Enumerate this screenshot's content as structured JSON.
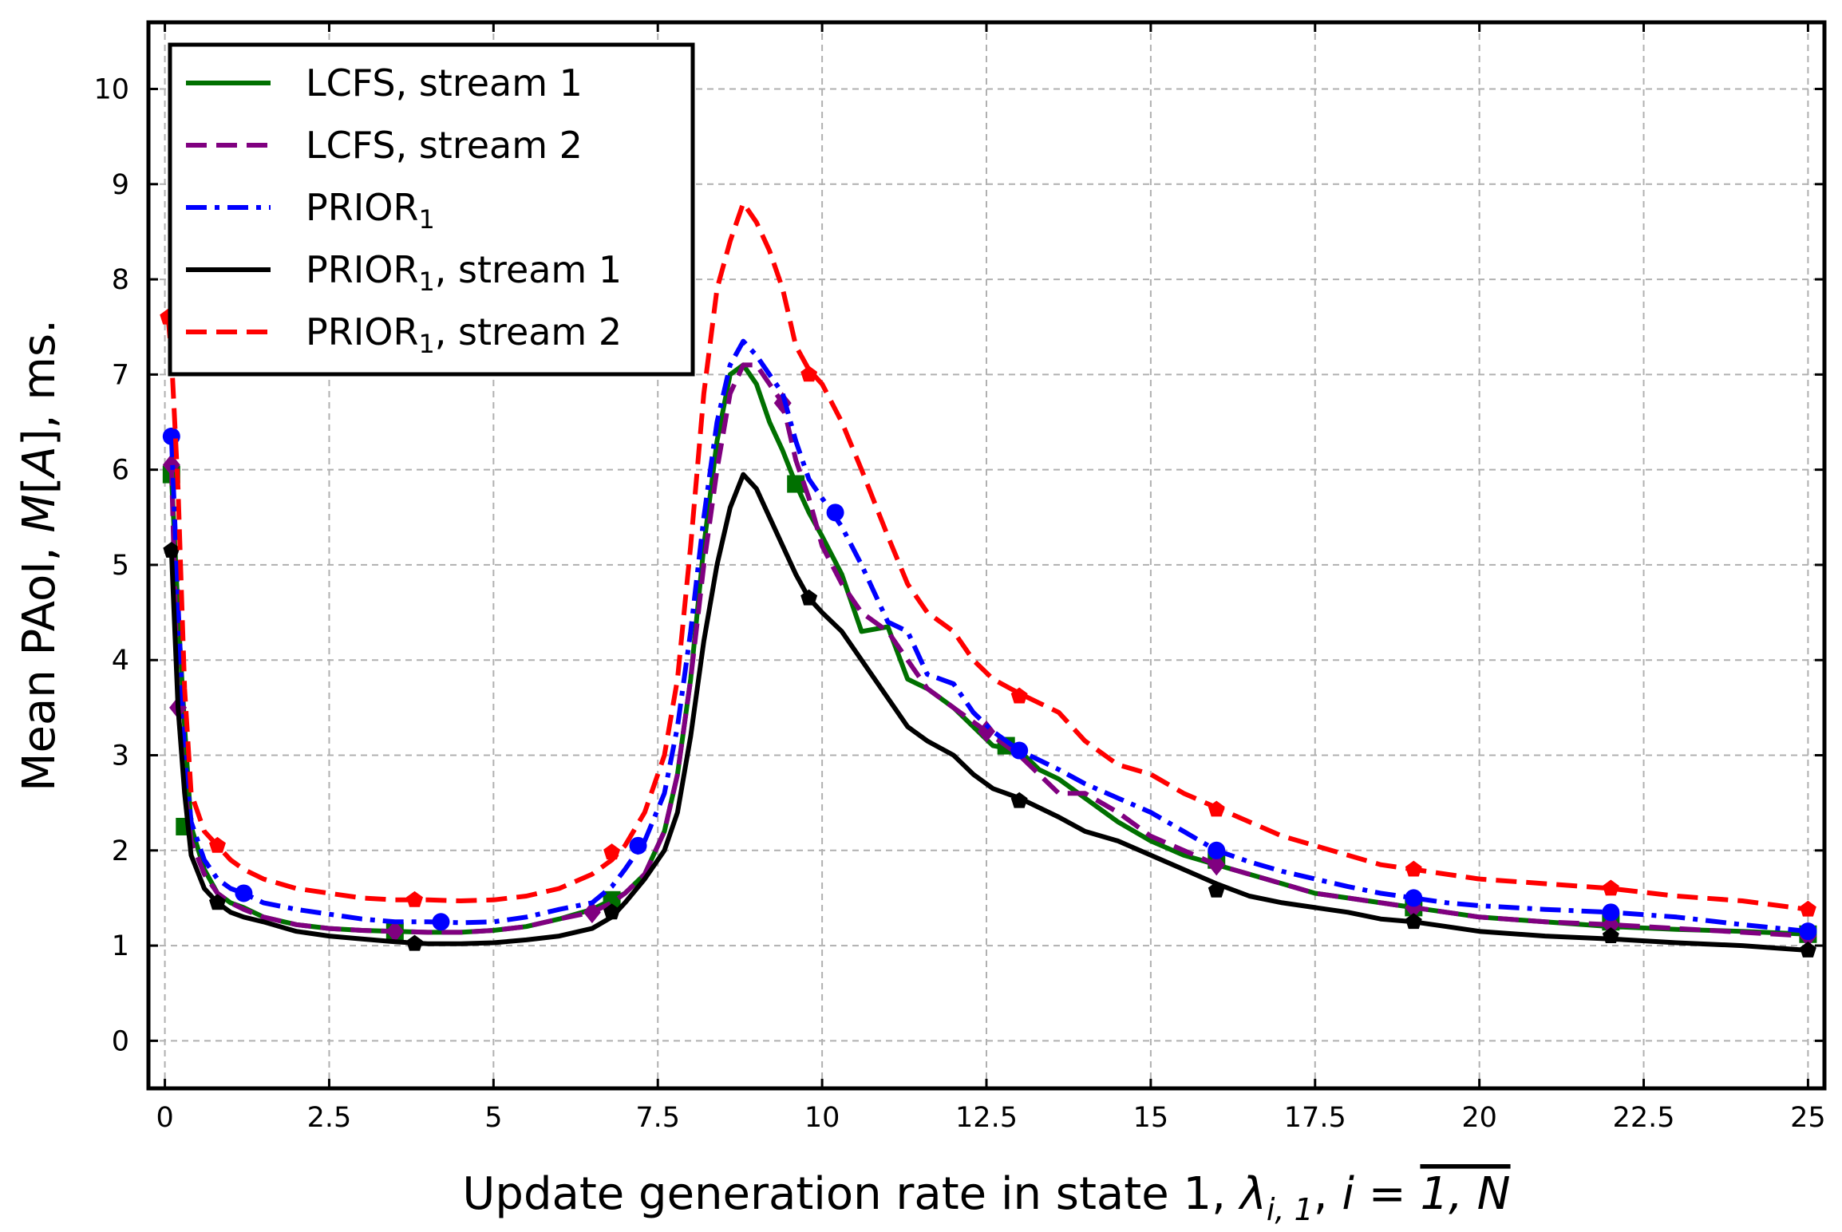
{
  "chart_data": {
    "type": "line",
    "xlabel": "Update generation rate in state 1, λ_{i,1}, i = 1, N",
    "xlabel_parts": {
      "prefix": "Update generation rate in state 1, ",
      "lambda": "λ",
      "lambda_sub": "i, 1",
      "comma": ", ",
      "i": "i",
      "eq": " = ",
      "range": "1, N"
    },
    "ylabel": "Mean PAoI, M[A], ms.",
    "ylabel_parts": {
      "prefix": "Mean PAoI, ",
      "m": "M",
      "open": "[",
      "a": "A",
      "close": "], ms."
    },
    "xlim": [
      -0.25,
      25.25
    ],
    "ylim": [
      -0.5,
      10.7
    ],
    "x_ticks": [
      0,
      2.5,
      5,
      7.5,
      10,
      12.5,
      15,
      17.5,
      20,
      22.5,
      25
    ],
    "x_tick_labels": [
      "0",
      "2.5",
      "5",
      "7.5",
      "10",
      "12.5",
      "15",
      "17.5",
      "20",
      "22.5",
      "25"
    ],
    "y_ticks": [
      0,
      1,
      2,
      3,
      4,
      5,
      6,
      7,
      8,
      9,
      10
    ],
    "y_tick_labels": [
      "0",
      "1",
      "2",
      "3",
      "4",
      "5",
      "6",
      "7",
      "8",
      "9",
      "10"
    ],
    "grid": true,
    "legend_position": "top-left",
    "series": [
      {
        "id": "lcfs1",
        "name": "LCFS, stream 1",
        "label": {
          "main": "LCFS, stream 1",
          "sub": "",
          "rest": ""
        },
        "color": "#007000",
        "dash": "solid",
        "marker": "square",
        "x": [
          0.1,
          0.2,
          0.3,
          0.4,
          0.6,
          0.8,
          1,
          1.2,
          1.5,
          2,
          2.5,
          3,
          3.5,
          4,
          4.5,
          5,
          5.5,
          6,
          6.5,
          6.8,
          7,
          7.3,
          7.6,
          7.8,
          8,
          8.2,
          8.4,
          8.6,
          8.8,
          9,
          9.2,
          9.4,
          9.6,
          9.8,
          10,
          10.3,
          10.6,
          11,
          11.3,
          11.6,
          12,
          12.3,
          12.6,
          13,
          13.3,
          13.6,
          14,
          14.5,
          15,
          15.5,
          16,
          16.5,
          17,
          17.5,
          18,
          18.5,
          19,
          19.5,
          20,
          21,
          22,
          23,
          24,
          25
        ],
        "y": [
          5.95,
          4.5,
          3.3,
          2.25,
          1.8,
          1.55,
          1.45,
          1.4,
          1.3,
          1.22,
          1.18,
          1.16,
          1.15,
          1.14,
          1.14,
          1.16,
          1.2,
          1.28,
          1.38,
          1.48,
          1.55,
          1.75,
          2.2,
          2.8,
          3.8,
          5.2,
          6.3,
          7.0,
          7.1,
          6.9,
          6.5,
          6.2,
          5.85,
          5.55,
          5.3,
          4.9,
          4.3,
          4.35,
          3.8,
          3.7,
          3.5,
          3.3,
          3.1,
          3.05,
          2.85,
          2.75,
          2.55,
          2.3,
          2.1,
          1.95,
          1.85,
          1.75,
          1.65,
          1.55,
          1.5,
          1.45,
          1.4,
          1.35,
          1.3,
          1.25,
          1.2,
          1.17,
          1.15,
          1.12
        ],
        "marker_x": [
          0.1,
          0.3,
          3.5,
          6.8,
          9.6,
          12.8,
          16,
          19,
          22,
          25
        ],
        "marker_y": [
          5.95,
          2.25,
          1.15,
          1.48,
          5.85,
          3.1,
          1.9,
          1.4,
          1.25,
          1.12
        ]
      },
      {
        "id": "lcfs2",
        "name": "LCFS, stream 2",
        "label": {
          "main": "LCFS, stream 2",
          "sub": "",
          "rest": ""
        },
        "color": "#800080",
        "dash": "dashed",
        "marker": "diamond",
        "x": [
          0.1,
          0.2,
          0.3,
          0.4,
          0.6,
          0.8,
          1,
          1.2,
          1.5,
          2,
          2.5,
          3,
          3.5,
          4,
          4.5,
          5,
          5.5,
          6,
          6.5,
          6.8,
          7,
          7.3,
          7.6,
          7.8,
          8,
          8.2,
          8.4,
          8.6,
          8.8,
          9,
          9.2,
          9.4,
          9.6,
          9.8,
          10,
          10.3,
          10.6,
          11,
          11.3,
          11.6,
          12,
          12.3,
          12.6,
          13,
          13.3,
          13.6,
          14,
          14.5,
          15,
          15.5,
          16,
          16.5,
          17,
          17.5,
          18,
          18.5,
          19,
          19.5,
          20,
          21,
          22,
          23,
          24,
          25
        ],
        "y": [
          6.05,
          3.5,
          2.7,
          2.1,
          1.75,
          1.55,
          1.45,
          1.38,
          1.3,
          1.22,
          1.18,
          1.16,
          1.15,
          1.14,
          1.14,
          1.16,
          1.2,
          1.28,
          1.35,
          1.45,
          1.55,
          1.75,
          2.2,
          2.8,
          3.8,
          5.0,
          6.0,
          6.8,
          7.1,
          7.1,
          6.9,
          6.7,
          6.1,
          5.7,
          5.2,
          4.8,
          4.5,
          4.3,
          4.0,
          3.7,
          3.5,
          3.35,
          3.2,
          3.0,
          2.8,
          2.6,
          2.6,
          2.4,
          2.15,
          2.0,
          1.85,
          1.75,
          1.65,
          1.55,
          1.5,
          1.45,
          1.4,
          1.35,
          1.3,
          1.25,
          1.22,
          1.18,
          1.14,
          1.1
        ],
        "marker_x": [
          0.1,
          0.2,
          3.5,
          6.5,
          9.4,
          12.5,
          16,
          19,
          22,
          25
        ],
        "marker_y": [
          6.05,
          3.5,
          1.15,
          1.35,
          6.7,
          3.25,
          1.85,
          1.4,
          1.22,
          1.1
        ]
      },
      {
        "id": "prior1",
        "name": "PRIOR1",
        "label": {
          "main": "PRIOR",
          "sub": "1",
          "rest": ""
        },
        "color": "#0000ff",
        "dash": "dashdot",
        "marker": "circle",
        "x": [
          0.1,
          0.2,
          0.3,
          0.4,
          0.6,
          0.8,
          1,
          1.2,
          1.5,
          2,
          2.5,
          3,
          3.5,
          4,
          4.5,
          5,
          5.5,
          6,
          6.5,
          6.8,
          7,
          7.3,
          7.6,
          7.8,
          8,
          8.2,
          8.4,
          8.6,
          8.8,
          9,
          9.2,
          9.4,
          9.6,
          9.8,
          10,
          10.3,
          10.6,
          11,
          11.3,
          11.6,
          12,
          12.3,
          12.6,
          13,
          13.3,
          13.6,
          14,
          14.5,
          15,
          15.5,
          16,
          16.5,
          17,
          17.5,
          18,
          18.5,
          19,
          19.5,
          20,
          21,
          22,
          23,
          24,
          25
        ],
        "y": [
          6.35,
          4.6,
          3.0,
          2.3,
          1.9,
          1.7,
          1.6,
          1.55,
          1.45,
          1.38,
          1.33,
          1.28,
          1.25,
          1.25,
          1.24,
          1.25,
          1.3,
          1.38,
          1.45,
          1.62,
          1.8,
          2.1,
          2.6,
          3.3,
          4.3,
          5.5,
          6.5,
          7.1,
          7.35,
          7.2,
          7.0,
          6.8,
          6.3,
          5.9,
          5.7,
          5.4,
          5.0,
          4.4,
          4.3,
          3.85,
          3.75,
          3.45,
          3.25,
          3.05,
          2.95,
          2.85,
          2.7,
          2.55,
          2.4,
          2.2,
          2.0,
          1.88,
          1.78,
          1.7,
          1.62,
          1.55,
          1.5,
          1.45,
          1.42,
          1.38,
          1.35,
          1.3,
          1.22,
          1.15
        ],
        "marker_x": [
          0.1,
          1.2,
          4.2,
          7.2,
          10.2,
          13,
          16,
          19,
          22,
          25
        ],
        "marker_y": [
          6.35,
          1.55,
          1.25,
          2.05,
          5.55,
          3.05,
          2.0,
          1.5,
          1.35,
          1.15
        ]
      },
      {
        "id": "prior1s1",
        "name": "PRIOR1, stream 1",
        "label": {
          "main": "PRIOR",
          "sub": "1",
          "rest": ", stream 1"
        },
        "color": "#000000",
        "dash": "solid",
        "marker": "pentagon",
        "x": [
          0.1,
          0.2,
          0.3,
          0.4,
          0.6,
          0.8,
          1,
          1.2,
          1.5,
          2,
          2.5,
          3,
          3.5,
          4,
          4.5,
          5,
          5.5,
          6,
          6.5,
          6.8,
          7,
          7.3,
          7.6,
          7.8,
          8,
          8.2,
          8.4,
          8.6,
          8.8,
          9,
          9.2,
          9.4,
          9.6,
          9.8,
          10,
          10.3,
          10.6,
          11,
          11.3,
          11.6,
          12,
          12.3,
          12.6,
          13,
          13.3,
          13.6,
          14,
          14.5,
          15,
          15.5,
          16,
          16.5,
          17,
          17.5,
          18,
          18.5,
          19,
          19.5,
          20,
          21,
          22,
          23,
          24,
          25
        ],
        "y": [
          5.15,
          3.5,
          2.6,
          1.95,
          1.6,
          1.45,
          1.35,
          1.3,
          1.25,
          1.15,
          1.1,
          1.07,
          1.04,
          1.02,
          1.02,
          1.03,
          1.06,
          1.1,
          1.18,
          1.3,
          1.45,
          1.7,
          2.0,
          2.4,
          3.2,
          4.2,
          5.0,
          5.6,
          5.95,
          5.8,
          5.5,
          5.2,
          4.9,
          4.65,
          4.5,
          4.3,
          4.0,
          3.6,
          3.3,
          3.15,
          3.0,
          2.8,
          2.65,
          2.55,
          2.45,
          2.35,
          2.2,
          2.1,
          1.95,
          1.8,
          1.65,
          1.52,
          1.45,
          1.4,
          1.35,
          1.28,
          1.25,
          1.2,
          1.15,
          1.1,
          1.07,
          1.03,
          1.0,
          0.95
        ],
        "marker_x": [
          0.1,
          0.8,
          3.8,
          6.8,
          9.8,
          13,
          16,
          19,
          22,
          25
        ],
        "marker_y": [
          5.15,
          1.45,
          1.02,
          1.35,
          4.65,
          2.52,
          1.58,
          1.25,
          1.1,
          0.95
        ]
      },
      {
        "id": "prior1s2",
        "name": "PRIOR1, stream 2",
        "label": {
          "main": "PRIOR",
          "sub": "1",
          "rest": ", stream 2"
        },
        "color": "#ff0000",
        "dash": "dashed",
        "marker": "pentagon",
        "x": [
          0.05,
          0.1,
          0.2,
          0.3,
          0.4,
          0.6,
          0.8,
          1,
          1.2,
          1.5,
          2,
          2.5,
          3,
          3.5,
          4,
          4.5,
          5,
          5.5,
          6,
          6.5,
          6.8,
          7,
          7.3,
          7.6,
          7.8,
          8,
          8.2,
          8.4,
          8.6,
          8.8,
          9,
          9.2,
          9.4,
          9.6,
          9.8,
          10,
          10.3,
          10.6,
          11,
          11.3,
          11.6,
          12,
          12.3,
          12.6,
          13,
          13.3,
          13.6,
          14,
          14.5,
          15,
          15.5,
          16,
          16.5,
          17,
          17.5,
          18,
          18.5,
          19,
          19.5,
          20,
          21,
          22,
          23,
          24,
          25
        ],
        "y": [
          7.6,
          7.2,
          5.8,
          3.7,
          2.6,
          2.2,
          2.05,
          1.9,
          1.8,
          1.7,
          1.6,
          1.55,
          1.5,
          1.48,
          1.48,
          1.47,
          1.48,
          1.52,
          1.6,
          1.75,
          1.9,
          2.05,
          2.4,
          3.0,
          3.8,
          5.2,
          6.8,
          7.9,
          8.4,
          8.8,
          8.6,
          8.3,
          7.9,
          7.3,
          7.05,
          6.9,
          6.5,
          6.0,
          5.3,
          4.8,
          4.5,
          4.3,
          4.0,
          3.8,
          3.65,
          3.55,
          3.45,
          3.15,
          2.9,
          2.8,
          2.6,
          2.45,
          2.3,
          2.15,
          2.05,
          1.95,
          1.85,
          1.8,
          1.75,
          1.7,
          1.65,
          1.6,
          1.52,
          1.47,
          1.38
        ],
        "marker_x": [
          0.05,
          0.8,
          3.8,
          6.8,
          9.8,
          13,
          16,
          19,
          22,
          25
        ],
        "marker_y": [
          7.6,
          2.05,
          1.48,
          1.98,
          7.0,
          3.62,
          2.43,
          1.8,
          1.6,
          1.38
        ]
      }
    ]
  }
}
